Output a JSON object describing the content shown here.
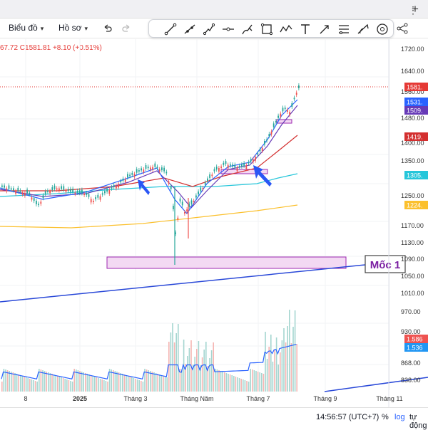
{
  "window": {
    "new_tab_icon": "plus-icon",
    "more_icon": "vertical-dots-icon"
  },
  "menu": {
    "chart_label": "Biểu đồ",
    "profile_label": "Hồ sơ",
    "undo_icon": "undo-icon",
    "redo_icon": "redo-icon"
  },
  "toolbar": {
    "tools": [
      "trend-line-icon",
      "ray-icon",
      "path-icon",
      "horizontal-line-icon",
      "brush-icon",
      "rectangle-icon",
      "zigzag-pattern-icon",
      "text-icon",
      "arrow-icon",
      "fib-retracement-icon",
      "measure-icon",
      "crosshair-icon"
    ],
    "share_icon": "share-icon"
  },
  "legend": {
    "text": "67.72  C1581.81  +8.10 (+0.51%)"
  },
  "price_axis": {
    "ticks": [
      "1720.00",
      "1640.00",
      "1560.00",
      "1480.00",
      "1400.00",
      "1350.00",
      "1250.00",
      "1170.00",
      "1130.00",
      "1090.00",
      "1050.00",
      "1010.00",
      "970.00",
      "930.00",
      "868.00",
      "838.00"
    ],
    "current_label": "1581.",
    "ma_labels": [
      {
        "text": "1531.",
        "color": "#2962ff"
      },
      {
        "text": "1509.",
        "color": "#673ab7"
      },
      {
        "text": "1419.",
        "color": "#d32f2f"
      },
      {
        "text": "1305.",
        "color": "#26c6da"
      },
      {
        "text": "1224.",
        "color": "#fbc02d"
      },
      {
        "text": "1.586",
        "color": "#ef5350"
      },
      {
        "text": "1.536",
        "color": "#2196f3"
      }
    ]
  },
  "time_axis": {
    "labels": [
      "8",
      "2025",
      "Tháng 3",
      "Tháng Năm",
      "Tháng 7",
      "Tháng 9",
      "Tháng 11"
    ]
  },
  "annotations": {
    "moc1_label": "Mốc 1"
  },
  "bottom": {
    "time": "14:56:57 (UTC+7)",
    "percent": "%",
    "log": "log",
    "auto": "tự động"
  },
  "colors": {
    "up": "#26a69a",
    "down": "#ef5350",
    "trendline": "#2948d8",
    "zone_fill": "#f3d9f3",
    "zone_border": "#9c27b0",
    "arrow": "#2a56f5",
    "last_price": "#e53935",
    "moc_label": "#7b1fa2"
  }
}
